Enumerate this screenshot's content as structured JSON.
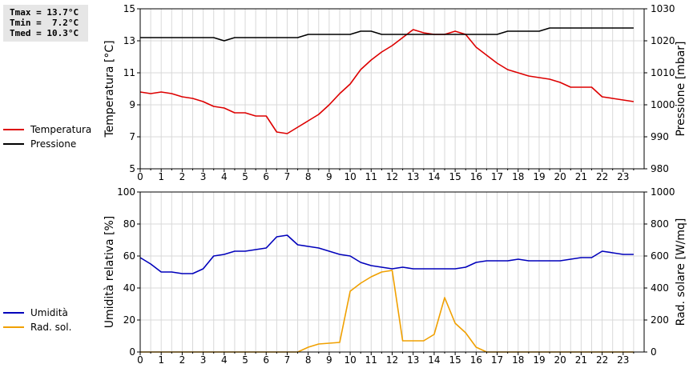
{
  "stats": {
    "tmax": "Tmax = 13.7°C",
    "tmin": "Tmin =  7.2°C",
    "tmed": "Tmed = 10.3°C"
  },
  "colors": {
    "temperature": "#dd0000",
    "pressure": "#000000",
    "humidity": "#0000bb",
    "radiation": "#f0a000",
    "grid": "#d8d8d8"
  },
  "legend_top": [
    {
      "label": "Temperatura",
      "color": "#dd0000"
    },
    {
      "label": "Pressione",
      "color": "#000000"
    }
  ],
  "legend_bottom": [
    {
      "label": "Umidità",
      "color": "#0000bb"
    },
    {
      "label": "Rad. sol.",
      "color": "#f0a000"
    }
  ],
  "chart_data": [
    {
      "type": "line",
      "ylabel": "Temperatura [°C]",
      "y2label": "Pressione [mbar]",
      "xlim": [
        0,
        24
      ],
      "ylim": [
        5,
        15
      ],
      "y2lim": [
        980,
        1030
      ],
      "x_ticks": [
        "0",
        "1",
        "2",
        "3",
        "4",
        "5",
        "6",
        "7",
        "8",
        "9",
        "10",
        "11",
        "12",
        "13",
        "14",
        "15",
        "16",
        "17",
        "18",
        "19",
        "20",
        "21",
        "22",
        "23"
      ],
      "y_ticks": [
        "5",
        "7",
        "9",
        "11",
        "13",
        "15"
      ],
      "y2_ticks": [
        "980",
        "990",
        "1000",
        "1010",
        "1020",
        "1030"
      ],
      "grid": true,
      "legend": "left",
      "series": [
        {
          "name": "Temperatura",
          "axis": "left",
          "x": [
            0,
            0.5,
            1,
            1.5,
            2,
            2.5,
            3,
            3.5,
            4,
            4.5,
            5,
            5.5,
            6,
            6.5,
            7,
            7.5,
            8,
            8.5,
            9,
            9.5,
            10,
            10.5,
            11,
            11.5,
            12,
            12.5,
            13,
            13.5,
            14,
            14.5,
            15,
            15.5,
            16,
            16.5,
            17,
            17.5,
            18,
            18.5,
            19,
            19.5,
            20,
            20.5,
            21,
            21.5,
            22,
            22.5,
            23,
            23.5
          ],
          "y": [
            9.8,
            9.7,
            9.8,
            9.7,
            9.5,
            9.4,
            9.2,
            8.9,
            8.8,
            8.5,
            8.5,
            8.3,
            8.3,
            7.3,
            7.2,
            7.6,
            8.0,
            8.4,
            9.0,
            9.7,
            10.3,
            11.2,
            11.8,
            12.3,
            12.7,
            13.2,
            13.7,
            13.5,
            13.4,
            13.4,
            13.6,
            13.4,
            12.6,
            12.1,
            11.6,
            11.2,
            11.0,
            10.8,
            10.7,
            10.6,
            10.4,
            10.1,
            10.1,
            10.1,
            9.5,
            9.4,
            9.3,
            9.2
          ]
        },
        {
          "name": "Pressione",
          "axis": "right",
          "x": [
            0,
            0.5,
            1,
            1.5,
            2,
            2.5,
            3,
            3.5,
            4,
            4.5,
            5,
            5.5,
            6,
            6.5,
            7,
            7.5,
            8,
            8.5,
            9,
            9.5,
            10,
            10.5,
            11,
            11.5,
            12,
            12.5,
            13,
            13.5,
            14,
            14.5,
            15,
            15.5,
            16,
            16.5,
            17,
            17.5,
            18,
            18.5,
            19,
            19.5,
            20,
            20.5,
            21,
            21.5,
            22,
            22.5,
            23,
            23.5
          ],
          "y": [
            1021,
            1021,
            1021,
            1021,
            1021,
            1021,
            1021,
            1021,
            1020,
            1021,
            1021,
            1021,
            1021,
            1021,
            1021,
            1021,
            1022,
            1022,
            1022,
            1022,
            1022,
            1023,
            1023,
            1022,
            1022,
            1022,
            1022,
            1022,
            1022,
            1022,
            1022,
            1022,
            1022,
            1022,
            1022,
            1023,
            1023,
            1023,
            1023,
            1024,
            1024,
            1024,
            1024,
            1024,
            1024,
            1024,
            1024,
            1024
          ]
        }
      ]
    },
    {
      "type": "line",
      "ylabel": "Umidità relativa [%]",
      "y2label": "Rad. solare [W/mq]",
      "xlim": [
        0,
        24
      ],
      "ylim": [
        0,
        100
      ],
      "y2lim": [
        0,
        1000
      ],
      "x_ticks": [
        "0",
        "1",
        "2",
        "3",
        "4",
        "5",
        "6",
        "7",
        "8",
        "9",
        "10",
        "11",
        "12",
        "13",
        "14",
        "15",
        "16",
        "17",
        "18",
        "19",
        "20",
        "21",
        "22",
        "23"
      ],
      "y_ticks": [
        "0",
        "20",
        "40",
        "60",
        "80",
        "100"
      ],
      "y2_ticks": [
        "0",
        "200",
        "400",
        "600",
        "800",
        "1000"
      ],
      "grid": true,
      "legend": "left",
      "series": [
        {
          "name": "Umidità",
          "axis": "left",
          "x": [
            0,
            0.5,
            1,
            1.5,
            2,
            2.5,
            3,
            3.5,
            4,
            4.5,
            5,
            5.5,
            6,
            6.5,
            7,
            7.5,
            8,
            8.5,
            9,
            9.5,
            10,
            10.5,
            11,
            11.5,
            12,
            12.5,
            13,
            13.5,
            14,
            14.5,
            15,
            15.5,
            16,
            16.5,
            17,
            17.5,
            18,
            18.5,
            19,
            19.5,
            20,
            20.5,
            21,
            21.5,
            22,
            22.5,
            23,
            23.5
          ],
          "y": [
            59,
            55,
            50,
            50,
            49,
            49,
            52,
            60,
            61,
            63,
            63,
            64,
            65,
            72,
            73,
            67,
            66,
            65,
            63,
            61,
            60,
            56,
            54,
            53,
            52,
            53,
            52,
            52,
            52,
            52,
            52,
            53,
            56,
            57,
            57,
            57,
            58,
            57,
            57,
            57,
            57,
            58,
            59,
            59,
            63,
            62,
            61,
            61
          ]
        },
        {
          "name": "Rad. sol.",
          "axis": "right",
          "x": [
            0,
            0.5,
            1,
            1.5,
            2,
            2.5,
            3,
            3.5,
            4,
            4.5,
            5,
            5.5,
            6,
            6.5,
            7,
            7.5,
            8,
            8.5,
            9,
            9.5,
            10,
            10.5,
            11,
            11.5,
            12,
            12.5,
            13,
            13.5,
            14,
            14.5,
            15,
            15.5,
            16,
            16.5,
            17,
            17.5,
            18,
            18.5,
            19,
            19.5,
            20,
            20.5,
            21,
            21.5,
            22,
            22.5,
            23,
            23.5
          ],
          "y": [
            0,
            0,
            0,
            0,
            0,
            0,
            0,
            0,
            0,
            0,
            0,
            0,
            0,
            0,
            0,
            0,
            30,
            50,
            55,
            60,
            380,
            430,
            470,
            500,
            510,
            70,
            70,
            70,
            110,
            340,
            180,
            120,
            30,
            0,
            0,
            0,
            0,
            0,
            0,
            0,
            0,
            0,
            0,
            0,
            0,
            0,
            0,
            0
          ]
        }
      ]
    }
  ]
}
